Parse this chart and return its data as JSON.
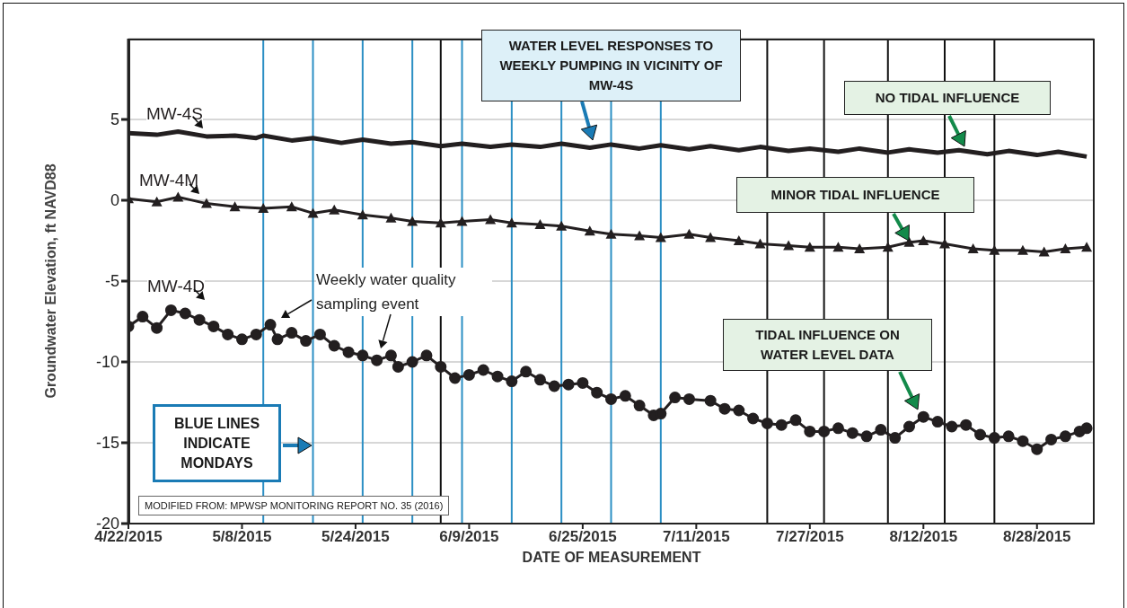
{
  "chart_data": {
    "type": "line",
    "xlabel": "DATE OF MEASUREMENT",
    "ylabel": "Groundwater Elevation, ft NAVD88",
    "xlim": [
      "2015-04-22",
      "2015-09-05"
    ],
    "ylim": [
      -20,
      10
    ],
    "xticks": [
      {
        "value": "2015-04-22",
        "label": "4/22/2015"
      },
      {
        "value": "2015-05-08",
        "label": "5/8/2015"
      },
      {
        "value": "2015-05-24",
        "label": "5/24/2015"
      },
      {
        "value": "2015-06-09",
        "label": "6/9/2015"
      },
      {
        "value": "2015-06-25",
        "label": "6/25/2015"
      },
      {
        "value": "2015-07-11",
        "label": "7/11/2015"
      },
      {
        "value": "2015-07-27",
        "label": "7/27/2015"
      },
      {
        "value": "2015-08-12",
        "label": "8/12/2015"
      },
      {
        "value": "2015-08-28",
        "label": "8/28/2015"
      }
    ],
    "yticks": [
      -20,
      -15,
      -10,
      -5,
      0,
      5
    ],
    "grid": "y",
    "series": [
      {
        "name": "MW-4S",
        "color": "#231f20",
        "marker": "none",
        "x": [
          "2015-04-22",
          "2015-04-26",
          "2015-04-29",
          "2015-05-03",
          "2015-05-07",
          "2015-05-10",
          "2015-05-11",
          "2015-05-15",
          "2015-05-18",
          "2015-05-22",
          "2015-05-25",
          "2015-05-29",
          "2015-06-01",
          "2015-06-05",
          "2015-06-08",
          "2015-06-12",
          "2015-06-15",
          "2015-06-19",
          "2015-06-22",
          "2015-06-26",
          "2015-06-29",
          "2015-07-03",
          "2015-07-06",
          "2015-07-10",
          "2015-07-13",
          "2015-07-17",
          "2015-07-20",
          "2015-07-24",
          "2015-07-27",
          "2015-07-31",
          "2015-08-03",
          "2015-08-07",
          "2015-08-10",
          "2015-08-14",
          "2015-08-17",
          "2015-08-21",
          "2015-08-24",
          "2015-08-28",
          "2015-08-31",
          "2015-09-04"
        ],
        "values": [
          4.15,
          4.05,
          4.25,
          3.95,
          4.0,
          3.85,
          4.0,
          3.7,
          3.85,
          3.55,
          3.75,
          3.5,
          3.6,
          3.35,
          3.5,
          3.3,
          3.45,
          3.3,
          3.5,
          3.25,
          3.45,
          3.2,
          3.4,
          3.15,
          3.35,
          3.1,
          3.3,
          3.05,
          3.2,
          3.0,
          3.2,
          2.95,
          3.15,
          2.95,
          3.1,
          2.85,
          3.05,
          2.8,
          3.0,
          2.7
        ]
      },
      {
        "name": "MW-4M",
        "color": "#231f20",
        "marker": "triangle",
        "x": [
          "2015-04-22",
          "2015-04-26",
          "2015-04-29",
          "2015-05-03",
          "2015-05-07",
          "2015-05-11",
          "2015-05-15",
          "2015-05-18",
          "2015-05-21",
          "2015-05-25",
          "2015-05-29",
          "2015-06-01",
          "2015-06-05",
          "2015-06-08",
          "2015-06-12",
          "2015-06-15",
          "2015-06-19",
          "2015-06-22",
          "2015-06-26",
          "2015-06-29",
          "2015-07-03",
          "2015-07-06",
          "2015-07-10",
          "2015-07-13",
          "2015-07-17",
          "2015-07-20",
          "2015-07-24",
          "2015-07-27",
          "2015-07-31",
          "2015-08-03",
          "2015-08-07",
          "2015-08-10",
          "2015-08-12",
          "2015-08-15",
          "2015-08-19",
          "2015-08-22",
          "2015-08-26",
          "2015-08-29",
          "2015-09-01",
          "2015-09-04"
        ],
        "values": [
          0.1,
          -0.1,
          0.2,
          -0.2,
          -0.4,
          -0.5,
          -0.4,
          -0.8,
          -0.6,
          -0.9,
          -1.1,
          -1.3,
          -1.4,
          -1.3,
          -1.2,
          -1.4,
          -1.5,
          -1.6,
          -1.9,
          -2.1,
          -2.2,
          -2.3,
          -2.1,
          -2.3,
          -2.5,
          -2.7,
          -2.8,
          -2.9,
          -2.9,
          -3.0,
          -2.9,
          -2.6,
          -2.5,
          -2.7,
          -3.0,
          -3.1,
          -3.1,
          -3.2,
          -3.0,
          -2.9
        ]
      },
      {
        "name": "MW-4D",
        "color": "#231f20",
        "marker": "circle",
        "x": [
          "2015-04-22",
          "2015-04-24",
          "2015-04-26",
          "2015-04-28",
          "2015-04-30",
          "2015-05-02",
          "2015-05-04",
          "2015-05-06",
          "2015-05-08",
          "2015-05-10",
          "2015-05-12",
          "2015-05-13",
          "2015-05-15",
          "2015-05-17",
          "2015-05-19",
          "2015-05-21",
          "2015-05-23",
          "2015-05-25",
          "2015-05-27",
          "2015-05-29",
          "2015-05-30",
          "2015-06-01",
          "2015-06-03",
          "2015-06-05",
          "2015-06-07",
          "2015-06-09",
          "2015-06-11",
          "2015-06-13",
          "2015-06-15",
          "2015-06-17",
          "2015-06-19",
          "2015-06-21",
          "2015-06-23",
          "2015-06-25",
          "2015-06-27",
          "2015-06-29",
          "2015-07-01",
          "2015-07-03",
          "2015-07-05",
          "2015-07-06",
          "2015-07-08",
          "2015-07-10",
          "2015-07-13",
          "2015-07-15",
          "2015-07-17",
          "2015-07-19",
          "2015-07-21",
          "2015-07-23",
          "2015-07-25",
          "2015-07-27",
          "2015-07-29",
          "2015-07-31",
          "2015-08-02",
          "2015-08-04",
          "2015-08-06",
          "2015-08-08",
          "2015-08-10",
          "2015-08-12",
          "2015-08-14",
          "2015-08-16",
          "2015-08-18",
          "2015-08-20",
          "2015-08-22",
          "2015-08-24",
          "2015-08-26",
          "2015-08-28",
          "2015-08-30",
          "2015-09-01",
          "2015-09-03",
          "2015-09-04"
        ],
        "values": [
          -7.8,
          -7.2,
          -7.9,
          -6.8,
          -7.0,
          -7.4,
          -7.8,
          -8.3,
          -8.6,
          -8.3,
          -7.7,
          -8.6,
          -8.2,
          -8.7,
          -8.3,
          -9.0,
          -9.4,
          -9.6,
          -9.9,
          -9.6,
          -10.3,
          -10.0,
          -9.6,
          -10.3,
          -11.0,
          -10.8,
          -10.5,
          -10.9,
          -11.2,
          -10.6,
          -11.1,
          -11.5,
          -11.4,
          -11.3,
          -11.9,
          -12.3,
          -12.1,
          -12.7,
          -13.3,
          -13.2,
          -12.2,
          -12.3,
          -12.4,
          -12.9,
          -13.0,
          -13.5,
          -13.8,
          -13.9,
          -13.6,
          -14.3,
          -14.3,
          -14.1,
          -14.4,
          -14.6,
          -14.2,
          -14.7,
          -14.0,
          -13.4,
          -13.7,
          -14.0,
          -13.9,
          -14.5,
          -14.7,
          -14.6,
          -14.9,
          -15.4,
          -14.8,
          -14.6,
          -14.3,
          -14.1
        ]
      }
    ],
    "ref_lines": [
      {
        "axis": "x",
        "value": "2015-05-11",
        "color": "#2b8fc4"
      },
      {
        "axis": "x",
        "value": "2015-05-18",
        "color": "#2b8fc4"
      },
      {
        "axis": "x",
        "value": "2015-05-25",
        "color": "#2b8fc4"
      },
      {
        "axis": "x",
        "value": "2015-06-01",
        "color": "#2b8fc4"
      },
      {
        "axis": "x",
        "value": "2015-06-08",
        "color": "#2b8fc4"
      },
      {
        "axis": "x",
        "value": "2015-06-15",
        "color": "#2b8fc4"
      },
      {
        "axis": "x",
        "value": "2015-06-22",
        "color": "#2b8fc4"
      },
      {
        "axis": "x",
        "value": "2015-06-29",
        "color": "#2b8fc4"
      },
      {
        "axis": "x",
        "value": "2015-07-06",
        "color": "#2b8fc4"
      },
      {
        "axis": "x",
        "value": "2015-06-05",
        "color": "#111111"
      },
      {
        "axis": "x",
        "value": "2015-07-21",
        "color": "#111111"
      },
      {
        "axis": "x",
        "value": "2015-07-29",
        "color": "#111111"
      },
      {
        "axis": "x",
        "value": "2015-08-07",
        "color": "#111111"
      },
      {
        "axis": "x",
        "value": "2015-08-15",
        "color": "#111111"
      },
      {
        "axis": "x",
        "value": "2015-08-22",
        "color": "#111111"
      }
    ],
    "annotations": [
      "WATER LEVEL RESPONSES TO WEEKLY PUMPING IN VICINITY OF MW-4S",
      "NO TIDAL INFLUENCE",
      "MINOR TIDAL INFLUENCE",
      "TIDAL INFLUENCE ON WATER LEVEL DATA",
      "Weekly water quality sampling event",
      "BLUE LINES INDICATE MONDAYS",
      "MODIFIED FROM: MPWSP MONITORING REPORT NO. 35 (2016)"
    ]
  }
}
